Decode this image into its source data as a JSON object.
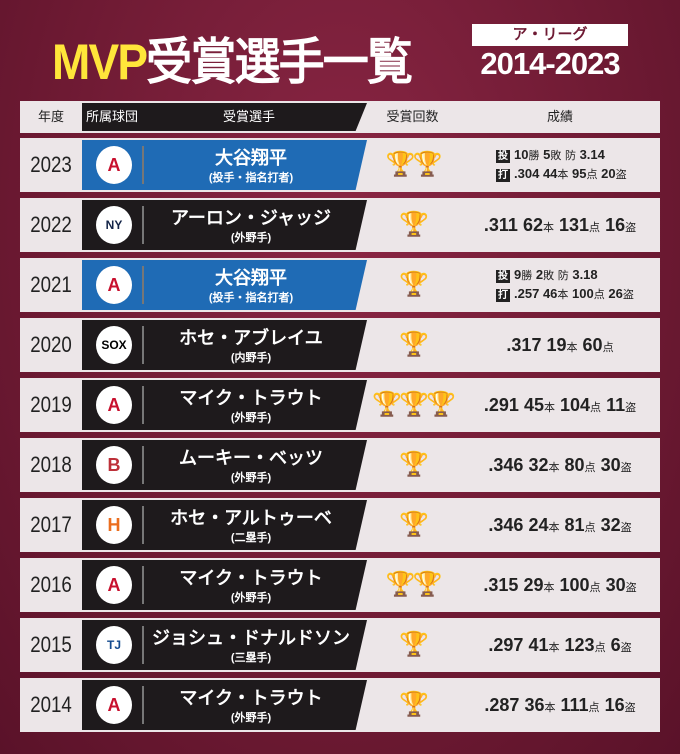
{
  "title": {
    "mvp": "MVP",
    "rest": "受賞選手一覧",
    "league": "ア・リーグ",
    "years": "2014-2023"
  },
  "header": {
    "year": "年度",
    "team": "所属球団",
    "player": "受賞選手",
    "count": "受賞回数",
    "stats": "成績"
  },
  "colors": {
    "background": "#6e1a33",
    "blue_panel": "#1f6bb5",
    "dark_panel": "#1e1a1c",
    "trophy": "#e8b020"
  },
  "rows": [
    {
      "year": "2023",
      "team": "angels-logo",
      "name": "大谷翔平",
      "pos": "(投手・指名打者)",
      "blue": true,
      "awards": 2,
      "trophies": "🏆🏆",
      "pitch": [
        {
          "n": "10",
          "u": "勝"
        },
        {
          "n": "5",
          "u": "敗"
        },
        {
          "n": "",
          "u": "防"
        },
        {
          "n": "3.14",
          "u": ""
        }
      ],
      "bat": [
        {
          "n": ".304",
          "u": ""
        },
        {
          "n": "44",
          "u": "本"
        },
        {
          "n": "95",
          "u": "点"
        },
        {
          "n": "20",
          "u": "盗"
        }
      ],
      "pitch_label": "投",
      "bat_label": "打"
    },
    {
      "year": "2022",
      "team": "yankees-logo",
      "name": "アーロン・ジャッジ",
      "pos": "(外野手)",
      "awards": 1,
      "trophies": "🏆",
      "bat": [
        {
          "n": ".311",
          "u": ""
        },
        {
          "n": "62",
          "u": "本"
        },
        {
          "n": "131",
          "u": "点"
        },
        {
          "n": "16",
          "u": "盗"
        }
      ]
    },
    {
      "year": "2021",
      "team": "angels-logo",
      "name": "大谷翔平",
      "pos": "(投手・指名打者)",
      "blue": true,
      "awards": 1,
      "trophies": "🏆",
      "pitch": [
        {
          "n": "9",
          "u": "勝"
        },
        {
          "n": "2",
          "u": "敗"
        },
        {
          "n": "",
          "u": "防"
        },
        {
          "n": "3.18",
          "u": ""
        }
      ],
      "bat": [
        {
          "n": ".257",
          "u": ""
        },
        {
          "n": "46",
          "u": "本"
        },
        {
          "n": "100",
          "u": "点"
        },
        {
          "n": "26",
          "u": "盗"
        }
      ],
      "pitch_label": "投",
      "bat_label": "打"
    },
    {
      "year": "2020",
      "team": "white-sox-logo",
      "name": "ホセ・アブレイユ",
      "pos": "(内野手)",
      "awards": 1,
      "trophies": "🏆",
      "bat": [
        {
          "n": ".317",
          "u": ""
        },
        {
          "n": "19",
          "u": "本"
        },
        {
          "n": "60",
          "u": "点"
        }
      ]
    },
    {
      "year": "2019",
      "team": "angels-logo",
      "name": "マイク・トラウト",
      "pos": "(外野手)",
      "awards": 3,
      "trophies": "🏆🏆🏆",
      "bat": [
        {
          "n": ".291",
          "u": ""
        },
        {
          "n": "45",
          "u": "本"
        },
        {
          "n": "104",
          "u": "点"
        },
        {
          "n": "11",
          "u": "盗"
        }
      ]
    },
    {
      "year": "2018",
      "team": "red-sox-logo",
      "name": "ムーキー・ベッツ",
      "pos": "(外野手)",
      "awards": 1,
      "trophies": "🏆",
      "bat": [
        {
          "n": ".346",
          "u": ""
        },
        {
          "n": "32",
          "u": "本"
        },
        {
          "n": "80",
          "u": "点"
        },
        {
          "n": "30",
          "u": "盗"
        }
      ]
    },
    {
      "year": "2017",
      "team": "astros-logo",
      "name": "ホセ・アルトゥーベ",
      "pos": "(二塁手)",
      "awards": 1,
      "trophies": "🏆",
      "bat": [
        {
          "n": ".346",
          "u": ""
        },
        {
          "n": "24",
          "u": "本"
        },
        {
          "n": "81",
          "u": "点"
        },
        {
          "n": "32",
          "u": "盗"
        }
      ]
    },
    {
      "year": "2016",
      "team": "angels-logo",
      "name": "マイク・トラウト",
      "pos": "(外野手)",
      "awards": 2,
      "trophies": "🏆🏆",
      "bat": [
        {
          "n": ".315",
          "u": ""
        },
        {
          "n": "29",
          "u": "本"
        },
        {
          "n": "100",
          "u": "点"
        },
        {
          "n": "30",
          "u": "盗"
        }
      ]
    },
    {
      "year": "2015",
      "team": "blue-jays-logo",
      "name": "ジョシュ・ドナルドソン",
      "pos": "(三塁手)",
      "awards": 1,
      "trophies": "🏆",
      "bat": [
        {
          "n": ".297",
          "u": ""
        },
        {
          "n": "41",
          "u": "本"
        },
        {
          "n": "123",
          "u": "点"
        },
        {
          "n": "6",
          "u": "盗"
        }
      ]
    },
    {
      "year": "2014",
      "team": "angels-logo",
      "name": "マイク・トラウト",
      "pos": "(外野手)",
      "awards": 1,
      "trophies": "🏆",
      "bat": [
        {
          "n": ".287",
          "u": ""
        },
        {
          "n": "36",
          "u": "本"
        },
        {
          "n": "111",
          "u": "点"
        },
        {
          "n": "16",
          "u": "盗"
        }
      ]
    }
  ]
}
